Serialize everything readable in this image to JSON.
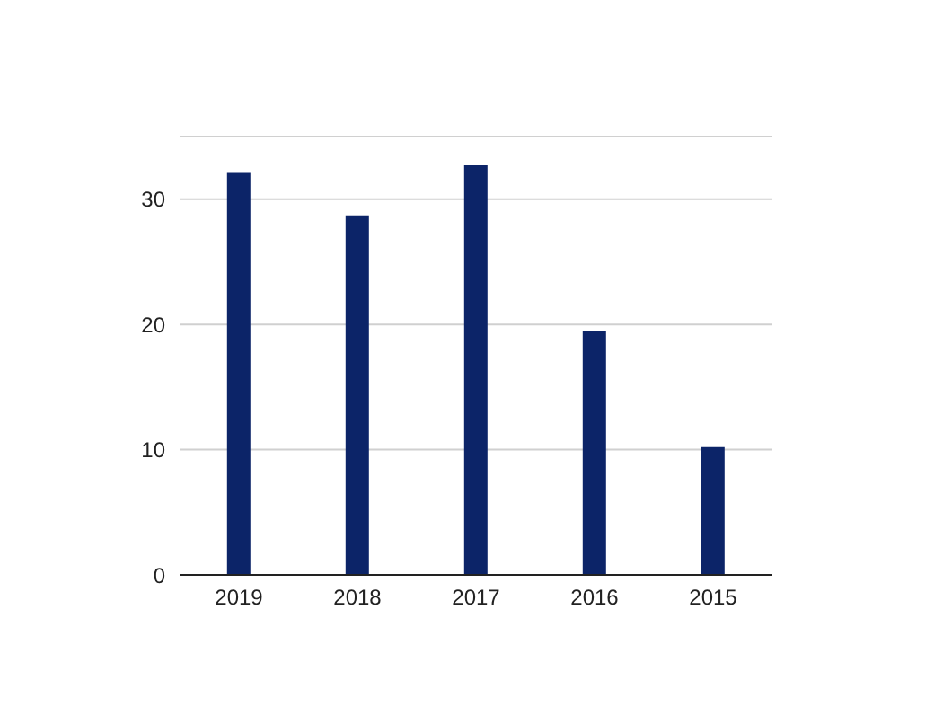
{
  "chart_data": {
    "type": "bar",
    "categories": [
      "2019",
      "2018",
      "2017",
      "2016",
      "2015"
    ],
    "values": [
      32.1,
      28.7,
      32.7,
      19.5,
      10.2
    ],
    "color": "#0c2468",
    "ylim": [
      0,
      35
    ],
    "yticks": [
      0,
      10,
      20,
      30
    ],
    "grid": "y",
    "legend": false
  }
}
